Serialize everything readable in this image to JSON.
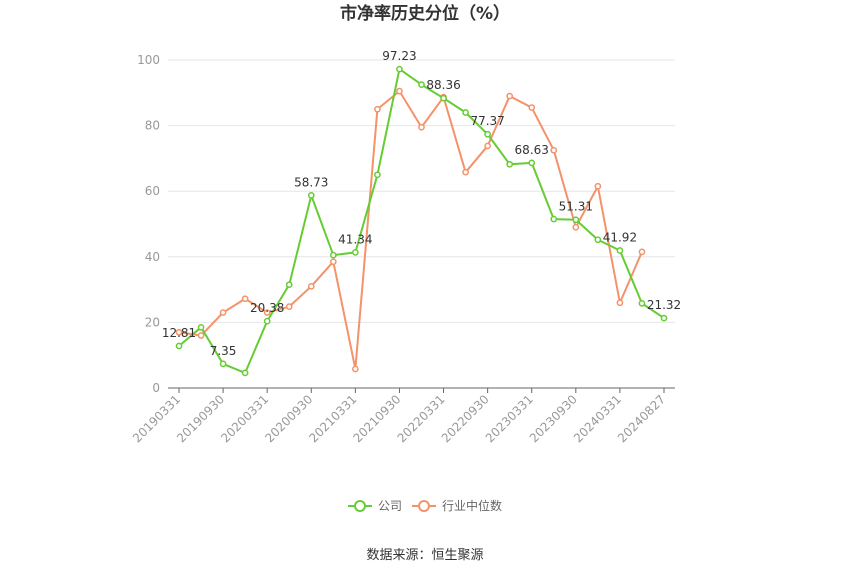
{
  "title": "市净率历史分位（%）",
  "source": "数据来源：恒生聚源",
  "colors": {
    "company": "#66cc33",
    "industry": "#f4926a",
    "grid": "#e6e6ec",
    "axis": "#666666"
  },
  "chart_data": {
    "type": "line",
    "title": "市净率历史分位（%）",
    "ylim": [
      0,
      100
    ],
    "yticks": [
      0,
      20,
      40,
      60,
      80,
      100
    ],
    "grid": true,
    "legend_position": "bottom",
    "x": [
      "20190331",
      "20190630",
      "20190930",
      "20191231",
      "20200331",
      "20200630",
      "20200930",
      "20201231",
      "20210331",
      "20210630",
      "20210930",
      "20211231",
      "20220331",
      "20220630",
      "20220930",
      "20221231",
      "20230331",
      "20230630",
      "20230930",
      "20231231",
      "20240331",
      "20240630",
      "20240827"
    ],
    "xtick_labels": [
      "20190331",
      "20190930",
      "20200331",
      "20200930",
      "20210331",
      "20210930",
      "20220331",
      "20220930",
      "20230331",
      "20230930",
      "20240331",
      "20240827"
    ],
    "series": [
      {
        "name": "公司",
        "values": [
          12.81,
          18.5,
          7.35,
          4.6,
          20.38,
          31.5,
          58.73,
          40.5,
          41.34,
          65.0,
          97.23,
          92.5,
          88.36,
          84.0,
          77.37,
          68.2,
          68.63,
          51.5,
          51.31,
          45.2,
          41.92,
          25.8,
          21.32
        ],
        "labels": {
          "0": "12.81",
          "2": "7.35",
          "4": "20.38",
          "6": "58.73",
          "8": "41.34",
          "10": "97.23",
          "12": "88.36",
          "14": "77.37",
          "16": "68.63",
          "18": "51.31",
          "20": "41.92",
          "22": "21.32"
        }
      },
      {
        "name": "行业中位数",
        "values": [
          17.0,
          16.0,
          23.0,
          27.2,
          23.0,
          24.8,
          31.0,
          38.5,
          5.8,
          85.0,
          90.5,
          79.5,
          88.7,
          65.8,
          73.8,
          89.0,
          85.5,
          72.5,
          49.0,
          61.5,
          26.0,
          41.5,
          null
        ]
      }
    ]
  }
}
